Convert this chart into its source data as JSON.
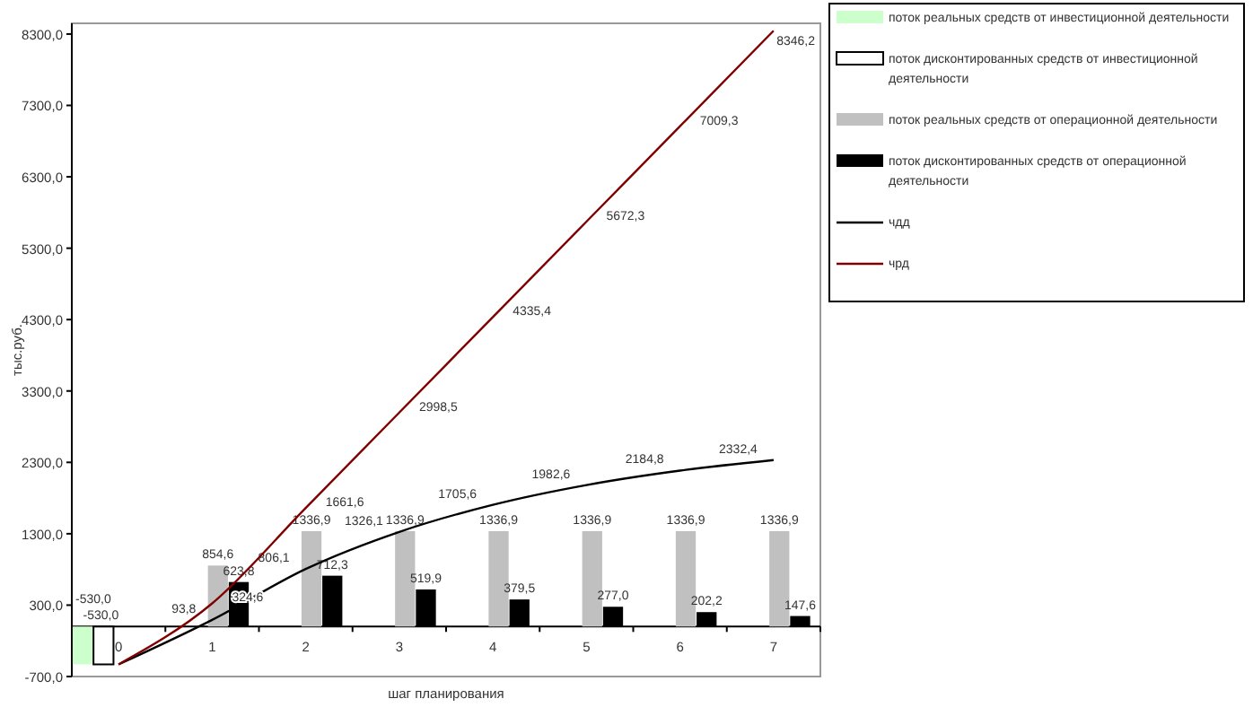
{
  "chart_data": {
    "type": "bar",
    "xlabel": "шаг планирования",
    "ylabel": "тыс.руб.",
    "categories": [
      "0",
      "1",
      "2",
      "3",
      "4",
      "5",
      "6",
      "7"
    ],
    "ylim": [
      -700,
      8450
    ],
    "yticks": [
      {
        "value": -700,
        "label": "-700,0"
      },
      {
        "value": 300,
        "label": "300,0"
      },
      {
        "value": 1300,
        "label": "1300,0"
      },
      {
        "value": 2300,
        "label": "2300,0"
      },
      {
        "value": 3300,
        "label": "3300,0"
      },
      {
        "value": 4300,
        "label": "4300,0"
      },
      {
        "value": 5300,
        "label": "5300,0"
      },
      {
        "value": 6300,
        "label": "6300,0"
      },
      {
        "value": 7300,
        "label": "7300,0"
      },
      {
        "value": 8300,
        "label": "8300,0"
      }
    ],
    "grid": false,
    "legend": "right",
    "series": [
      {
        "name": "поток реальных средств от инвестиционной деятельности",
        "color": "#ccffcc",
        "values": [
          -530,
          null,
          null,
          null,
          null,
          null,
          null,
          null
        ],
        "value_labels": [
          "-530,0",
          null,
          null,
          null,
          null,
          null,
          null,
          null
        ]
      },
      {
        "name": "поток дисконтированных средств от инвестиционной деятельности",
        "color": "#ffffff",
        "values": [
          -530,
          null,
          null,
          null,
          null,
          null,
          null,
          null
        ],
        "value_labels": [
          "-530,0",
          null,
          null,
          null,
          null,
          null,
          null,
          null
        ]
      },
      {
        "name": "поток реальных средств от операционной деятельности",
        "color": "#c0c0c0",
        "values": [
          null,
          854.6,
          1336.9,
          1336.9,
          1336.9,
          1336.9,
          1336.9,
          1336.9
        ],
        "value_labels": [
          null,
          "854,6",
          "1336,9",
          "1336,9",
          "1336,9",
          "1336,9",
          "1336,9",
          "1336,9"
        ]
      },
      {
        "name": "поток дисконтированных средств от операционной деятельности",
        "color": "#000000",
        "values": [
          null,
          623.8,
          712.3,
          519.9,
          379.5,
          277.0,
          202.2,
          147.6
        ],
        "value_labels": [
          null,
          "623,8",
          "712,3",
          "519,9",
          "379,5",
          "277,0",
          "202,2",
          "147,6"
        ]
      },
      {
        "name": "чдд",
        "type": "line",
        "color": "#000000",
        "values": [
          -530,
          93.8,
          806.1,
          1326.1,
          1705.6,
          1982.6,
          2184.8,
          2332.4
        ],
        "value_labels": [
          null,
          "93,8",
          "806,1",
          "1326,1",
          "1705,6",
          "1982,6",
          "2184,8",
          "2332,4"
        ]
      },
      {
        "name": "чрд",
        "type": "line",
        "color": "#800000",
        "values": [
          -530,
          324.6,
          1661.6,
          2998.5,
          4335.4,
          5672.3,
          7009.3,
          8346.2
        ],
        "value_labels": [
          null,
          "324,6",
          "1661,6",
          "2998,5",
          "4335,4",
          "5672,3",
          "7009,3",
          "8346,2"
        ]
      }
    ]
  }
}
